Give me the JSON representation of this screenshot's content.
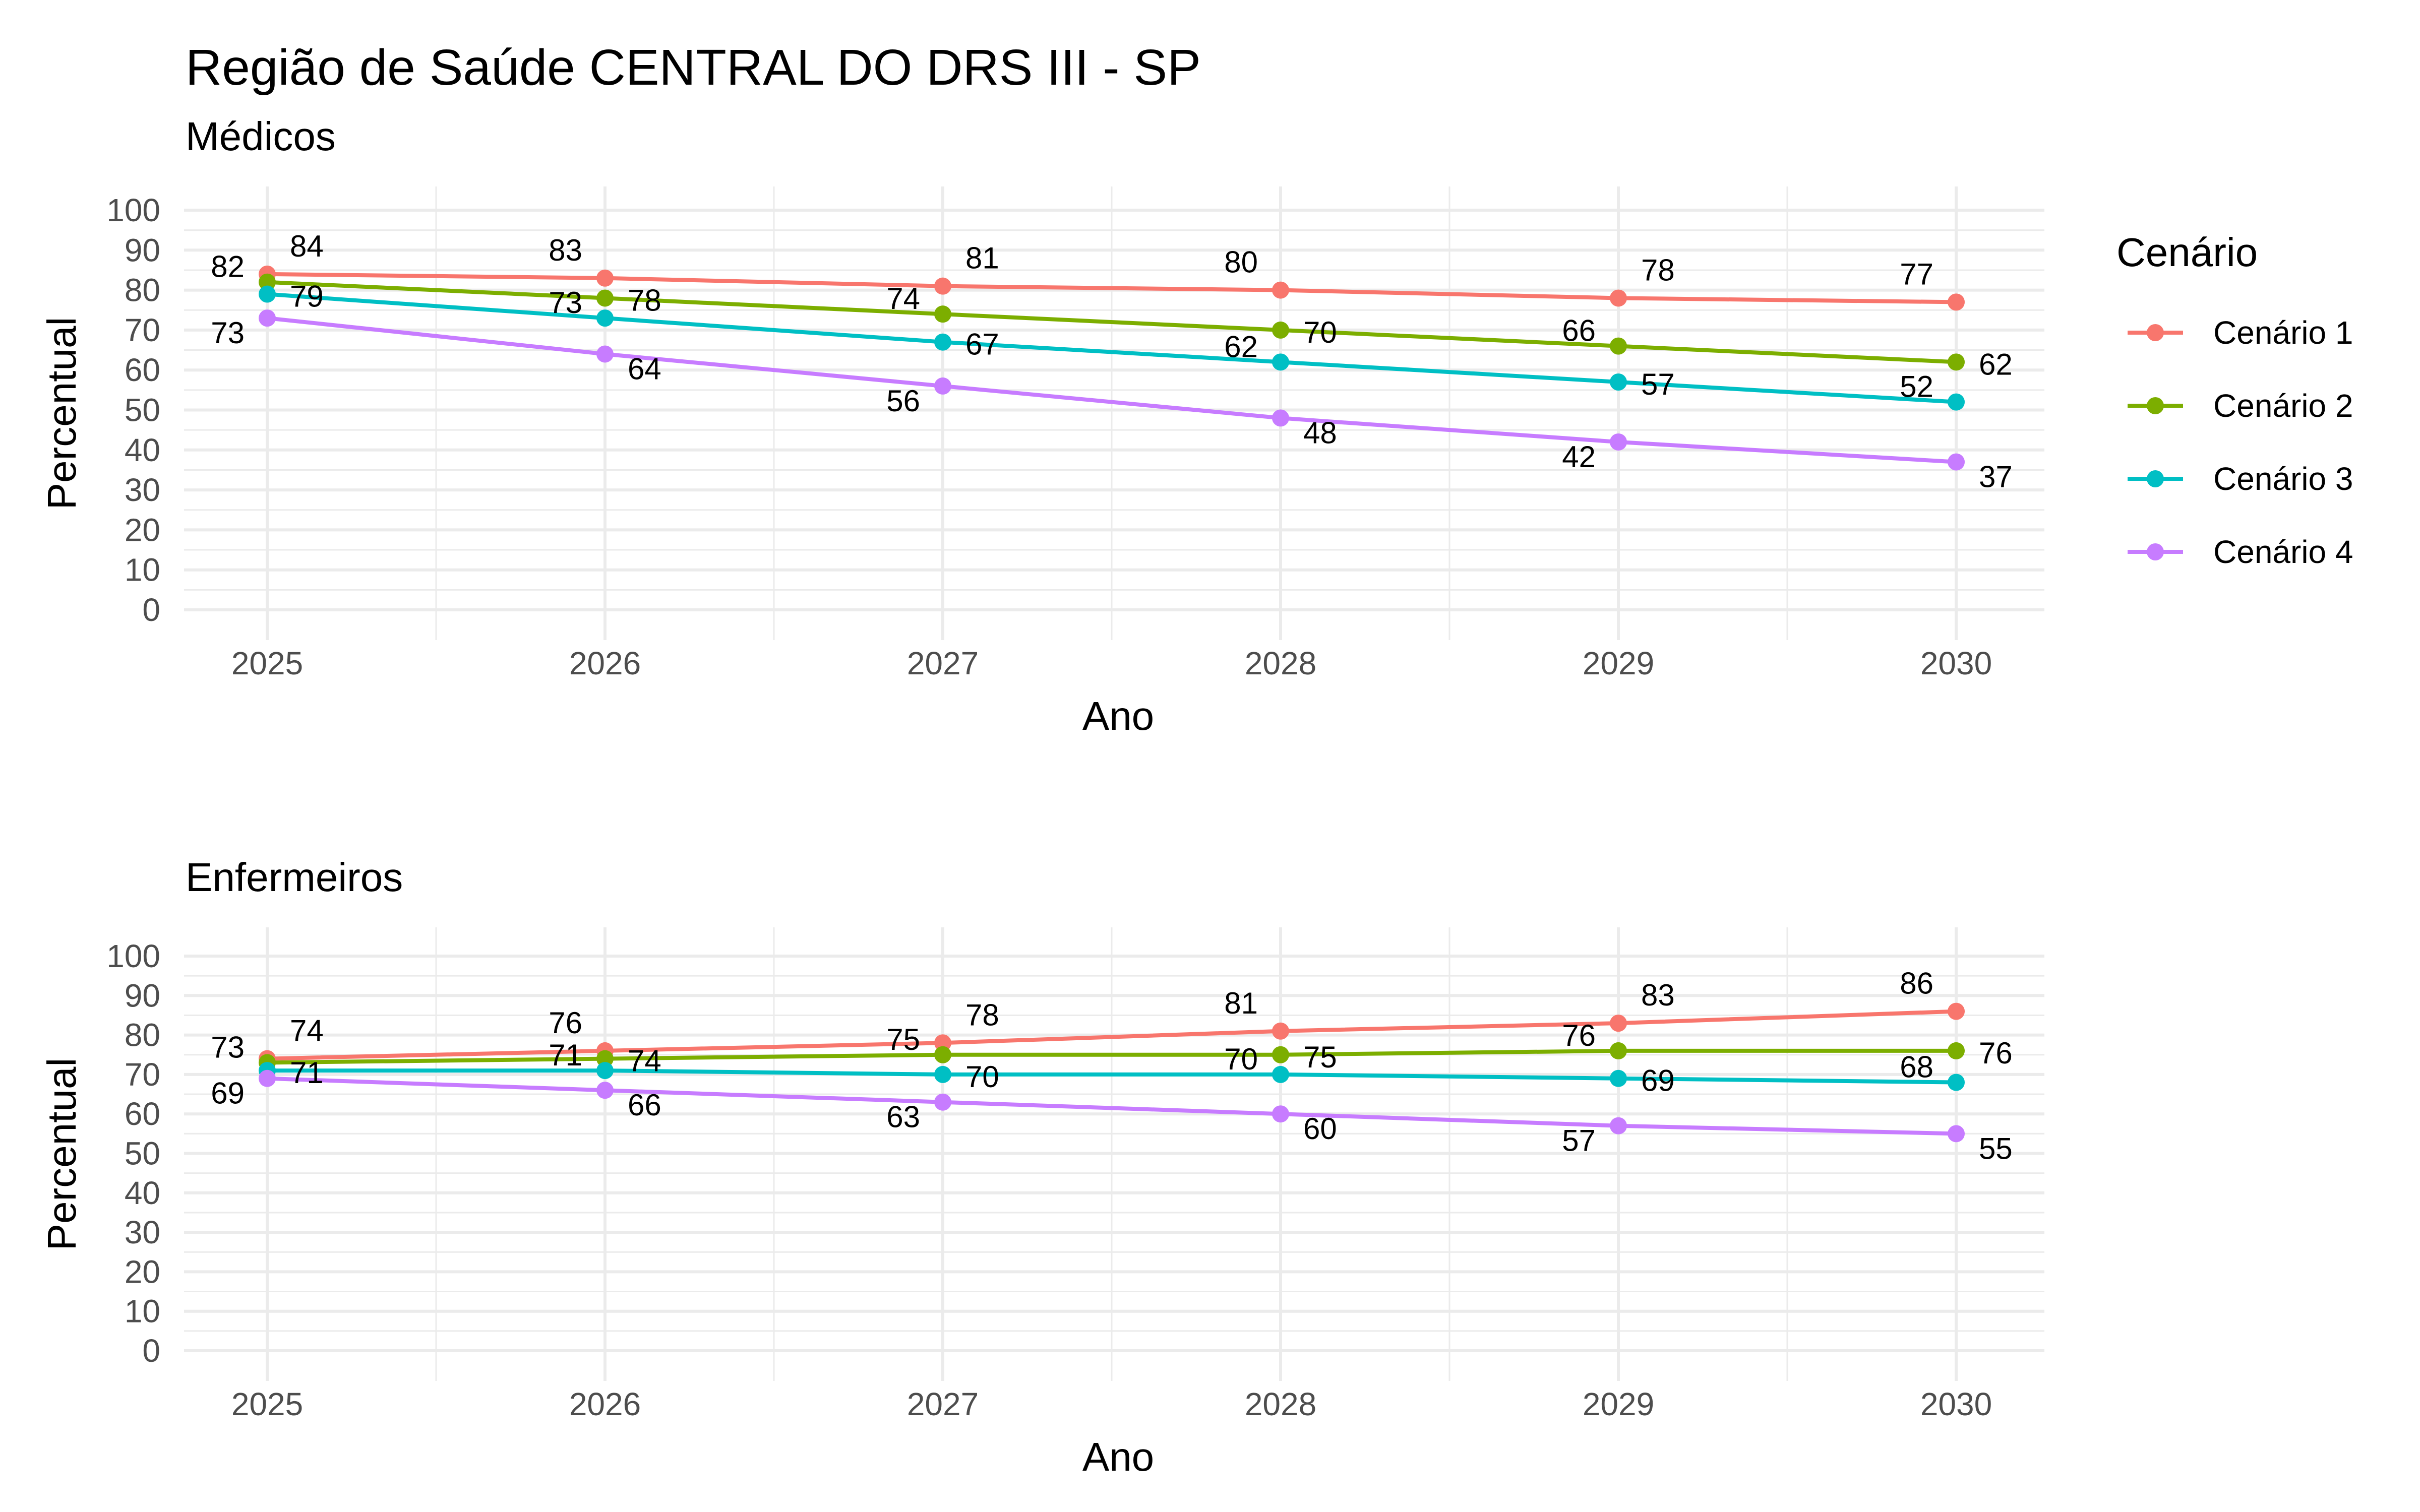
{
  "title": "Região de Saúde CENTRAL DO DRS III - SP",
  "legend": {
    "title": "Cenário",
    "placement": "right"
  },
  "colors": {
    "Cenário 1": "#F8766D",
    "Cenário 2": "#7CAE00",
    "Cenário 3": "#00BFC4",
    "Cenário 4": "#C77CFF"
  },
  "chart_data": [
    {
      "type": "line",
      "title": "Médicos",
      "xlabel": "Ano",
      "ylabel": "Percentual",
      "x": [
        "2025",
        "2026",
        "2027",
        "2028",
        "2029",
        "2030"
      ],
      "yticks": [
        "0",
        "10",
        "20",
        "30",
        "40",
        "50",
        "60",
        "70",
        "80",
        "90",
        "100"
      ],
      "ylim": [
        0,
        100
      ],
      "grid": true,
      "series": [
        {
          "name": "Cenário 1",
          "values": [
            84,
            83,
            81,
            80,
            78,
            77
          ]
        },
        {
          "name": "Cenário 2",
          "values": [
            82,
            78,
            74,
            70,
            66,
            62
          ]
        },
        {
          "name": "Cenário 3",
          "values": [
            79,
            73,
            67,
            62,
            57,
            52
          ]
        },
        {
          "name": "Cenário 4",
          "values": [
            73,
            64,
            56,
            48,
            42,
            37
          ]
        }
      ]
    },
    {
      "type": "line",
      "title": "Enfermeiros",
      "xlabel": "Ano",
      "ylabel": "Percentual",
      "x": [
        "2025",
        "2026",
        "2027",
        "2028",
        "2029",
        "2030"
      ],
      "yticks": [
        "0",
        "10",
        "20",
        "30",
        "40",
        "50",
        "60",
        "70",
        "80",
        "90",
        "100"
      ],
      "ylim": [
        0,
        100
      ],
      "grid": true,
      "series": [
        {
          "name": "Cenário 1",
          "values": [
            74,
            76,
            78,
            81,
            83,
            86
          ]
        },
        {
          "name": "Cenário 2",
          "values": [
            73,
            74,
            75,
            75,
            76,
            76
          ]
        },
        {
          "name": "Cenário 3",
          "values": [
            71,
            71,
            70,
            70,
            69,
            68
          ]
        },
        {
          "name": "Cenário 4",
          "values": [
            69,
            66,
            63,
            60,
            57,
            55
          ]
        }
      ]
    }
  ]
}
